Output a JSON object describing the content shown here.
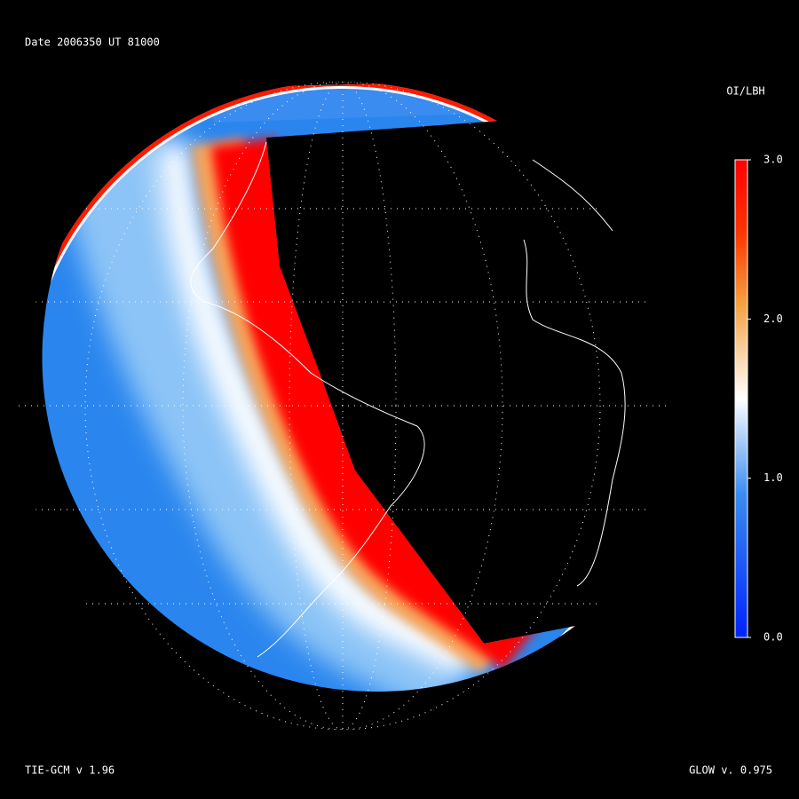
{
  "header": {
    "date": "Date 2006350",
    "ut": "UT 81000"
  },
  "colorbar": {
    "title": "OI/LBH",
    "lim": [
      0,
      3
    ],
    "ticks": [
      {
        "value": 3,
        "label": "3.0"
      },
      {
        "value": 2,
        "label": "2.0"
      },
      {
        "value": 1,
        "label": "1.0"
      },
      {
        "value": 0,
        "label": "0.0"
      }
    ]
  },
  "footer": {
    "left": "TIE-GCM v 1.96",
    "right": "GLOW v. 0.975"
  }
}
